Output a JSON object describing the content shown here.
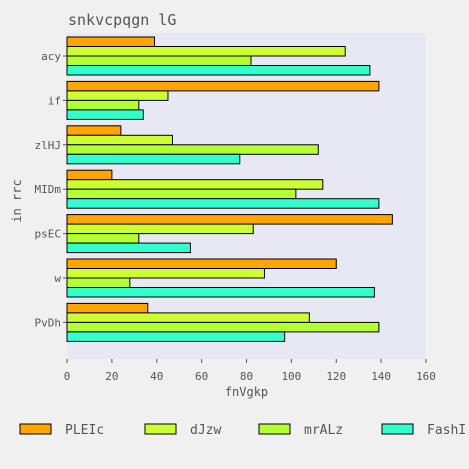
{
  "chart_data": {
    "type": "bar",
    "orientation": "horizontal",
    "title": "snkvcpqgn lG",
    "xlabel": "fnVgkp",
    "ylabel": "in rrc",
    "xlim": [
      0,
      160
    ],
    "xticks": [
      0,
      20,
      40,
      60,
      80,
      100,
      120,
      140,
      160
    ],
    "categories": [
      "acy",
      "if",
      "zlHJ",
      "MIDm",
      "psEC",
      "w",
      "PvDh"
    ],
    "grid": false,
    "legend_position": "bottom",
    "series": [
      {
        "name": "PLEIc",
        "color": "#ffa500",
        "values": [
          39,
          139,
          24,
          20,
          145,
          120,
          36
        ]
      },
      {
        "name": "dJzw",
        "color": "#ccff33",
        "values": [
          124,
          45,
          47,
          114,
          83,
          88,
          108
        ]
      },
      {
        "name": "mrALz",
        "color": "#b3ff33",
        "values": [
          82,
          32,
          112,
          102,
          32,
          28,
          139
        ]
      },
      {
        "name": "FashI",
        "color": "#33ffcc",
        "values": [
          135,
          34,
          77,
          139,
          55,
          137,
          97
        ]
      }
    ]
  }
}
